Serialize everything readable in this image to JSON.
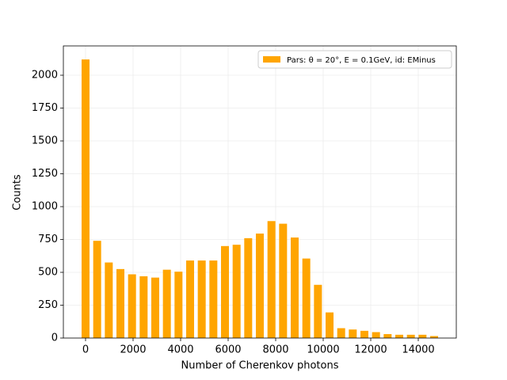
{
  "chart_data": {
    "type": "bar",
    "xlabel": "Number of Cherenkov photons",
    "ylabel": "Counts",
    "x": [
      0,
      489,
      978,
      1467,
      1956,
      2444,
      2933,
      3422,
      3911,
      4400,
      4889,
      5378,
      5867,
      6356,
      6844,
      7333,
      7822,
      8311,
      8800,
      9289,
      9778,
      10267,
      10756,
      11244,
      11733,
      12222,
      12711,
      13200,
      13689,
      14178,
      14667
    ],
    "series": [
      {
        "name": "Pars: θ = 20°, E = 0.1GeV, id: EMinus",
        "color": "#ffa500",
        "values": [
          2120,
          740,
          575,
          525,
          485,
          470,
          460,
          520,
          505,
          590,
          590,
          590,
          700,
          710,
          760,
          795,
          890,
          870,
          765,
          605,
          405,
          195,
          75,
          65,
          55,
          45,
          30,
          25,
          25,
          25,
          15
        ]
      }
    ],
    "xlim": [
      -933,
      15600
    ],
    "ylim": [
      0,
      2223
    ],
    "xticks": [
      0,
      2000,
      4000,
      6000,
      8000,
      10000,
      12000,
      14000
    ],
    "yticks": [
      0,
      250,
      500,
      750,
      1000,
      1250,
      1500,
      1750,
      2000
    ],
    "grid": true,
    "legend": "upper right"
  }
}
